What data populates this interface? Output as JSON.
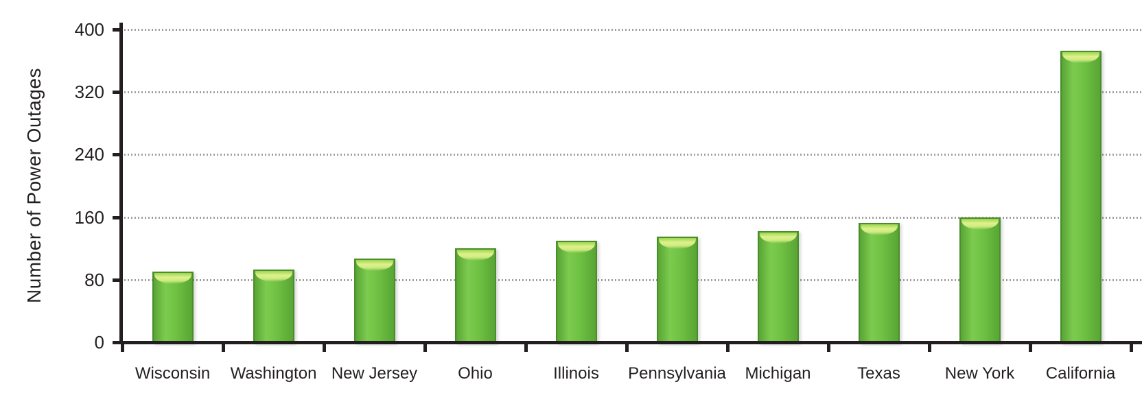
{
  "chart_data": {
    "type": "bar",
    "ylabel": "Number of Power Outages",
    "categories": [
      "Wisconsin",
      "Washington",
      "New Jersey",
      "Ohio",
      "Illinois",
      "Pennsylvania",
      "Michigan",
      "Texas",
      "New York",
      "California"
    ],
    "values": [
      90,
      93,
      107,
      120,
      130,
      135,
      142,
      153,
      160,
      373
    ],
    "ylim": [
      0,
      400
    ],
    "yticks": [
      0,
      80,
      160,
      240,
      320,
      400
    ],
    "grid": {
      "horizontal": true,
      "style": "dotted"
    },
    "colors": {
      "bar_fill": "#6fc143",
      "bar_fill_light": "#7ccb4f",
      "bar_fill_dark": "#58a534",
      "bar_border": "#4b8c2d",
      "bar_gloss": "#dff18c",
      "axis": "#231f20",
      "gridline": "#a39f9d",
      "text": "#231f20",
      "background": "#ffffff"
    }
  }
}
